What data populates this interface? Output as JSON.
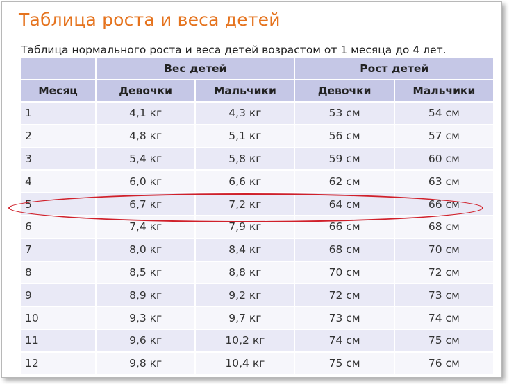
{
  "title": "Таблица роста и веса детей",
  "subtitle": "Таблица нормального роста и веса детей возрастом от 1 месяца до 4 лет.",
  "table": {
    "group_headers": [
      "Вес детей",
      "Рост детей"
    ],
    "columns": [
      "Месяц",
      "Девочки",
      "Мальчики",
      "Девочки",
      "Мальчики"
    ],
    "rows": [
      [
        "1",
        "4,1 кг",
        "4,3 кг",
        "53 см",
        "54 см"
      ],
      [
        "2",
        "4,8 кг",
        "5,1 кг",
        "56 см",
        "57 см"
      ],
      [
        "3",
        "5,4 кг",
        "5,8 кг",
        "59 см",
        "60 см"
      ],
      [
        "4",
        "6,0 кг",
        "6,6 кг",
        "62 см",
        "63 см"
      ],
      [
        "5",
        "6,7 кг",
        "7,2 кг",
        "64 см",
        "66 см"
      ],
      [
        "6",
        "7,4 кг",
        "7,9 кг",
        "66 см",
        "68 см"
      ],
      [
        "7",
        "8,0 кг",
        "8,4 кг",
        "68 см",
        "70 см"
      ],
      [
        "8",
        "8,5 кг",
        "8,8 кг",
        "70 см",
        "72 см"
      ],
      [
        "9",
        "8,9 кг",
        "9,2 кг",
        "72 см",
        "73 см"
      ],
      [
        "10",
        "9,3 кг",
        "9,7 кг",
        "73 см",
        "74 см"
      ],
      [
        "11",
        "9,6 кг",
        "10,2 кг",
        "74 см",
        "75 см"
      ],
      [
        "12",
        "9,8 кг",
        "10,4 кг",
        "75 см",
        "76 см"
      ]
    ],
    "highlighted_row": "5"
  },
  "colors": {
    "title": "#e5731e",
    "header_bg": "#c5c7e6",
    "row_odd": "#e9e9f6",
    "row_even": "#f6f6fb",
    "highlight_ellipse": "#d0202a"
  }
}
